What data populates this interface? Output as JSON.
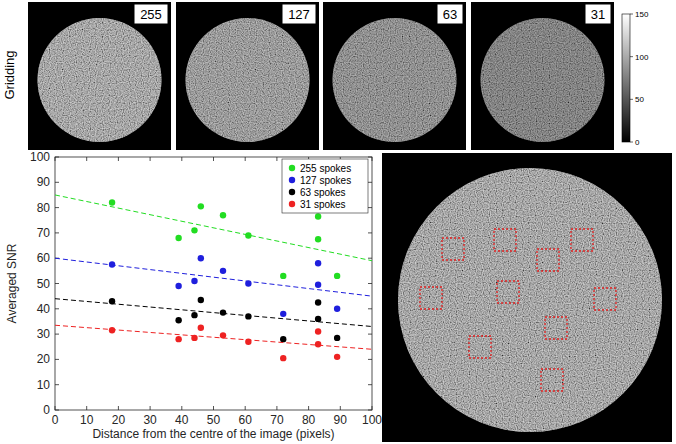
{
  "chart_data": {
    "type": "scatter",
    "x_label": "Distance from the centre of the image (pixels)",
    "y_label": "Averaged SNR",
    "xlim": [
      0,
      100
    ],
    "ylim": [
      0,
      100
    ],
    "xticks": [
      0,
      10,
      20,
      30,
      40,
      50,
      60,
      70,
      80,
      90,
      100
    ],
    "yticks": [
      0,
      10,
      20,
      30,
      40,
      50,
      60,
      70,
      80,
      90,
      100
    ],
    "grid": false,
    "legend": "upper right",
    "marker": "circle",
    "x": [
      18,
      39,
      44,
      46,
      53,
      61,
      72,
      83,
      83,
      89
    ],
    "series": [
      {
        "name": "255 spokes",
        "color": "#22dd22",
        "line_style": "dashed",
        "values": [
          82,
          68,
          71,
          80.5,
          77,
          69,
          53,
          76.5,
          67.5,
          53
        ],
        "trend": {
          "x": [
            0,
            100
          ],
          "values": [
            85,
            59
          ]
        }
      },
      {
        "name": "127 spokes",
        "color": "#1f1fdd",
        "line_style": "dashed",
        "values": [
          57.5,
          49,
          51,
          60,
          55,
          50,
          38,
          58,
          49.5,
          40
        ],
        "trend": {
          "x": [
            0,
            100
          ],
          "values": [
            60,
            45
          ]
        }
      },
      {
        "name": "63 spokes",
        "color": "#000000",
        "line_style": "dashed",
        "values": [
          43,
          35.5,
          37.5,
          43.5,
          38.5,
          37,
          28,
          42.5,
          36,
          28.5
        ],
        "trend": {
          "x": [
            0,
            100
          ],
          "values": [
            44,
            33
          ]
        }
      },
      {
        "name": "31 spokes",
        "color": "#ee2222",
        "line_style": "dashed",
        "values": [
          31.5,
          28,
          28.5,
          32.5,
          29.5,
          27,
          20.5,
          31,
          26,
          21
        ],
        "trend": {
          "x": [
            0,
            100
          ],
          "values": [
            33.5,
            24
          ]
        }
      }
    ]
  },
  "figure": {
    "row_label": "Gridding",
    "panels": [
      "255",
      "127",
      "63",
      "31"
    ],
    "colorbar": {
      "lim": [
        0,
        150
      ],
      "ticks": [
        0,
        50,
        100,
        150
      ]
    }
  }
}
